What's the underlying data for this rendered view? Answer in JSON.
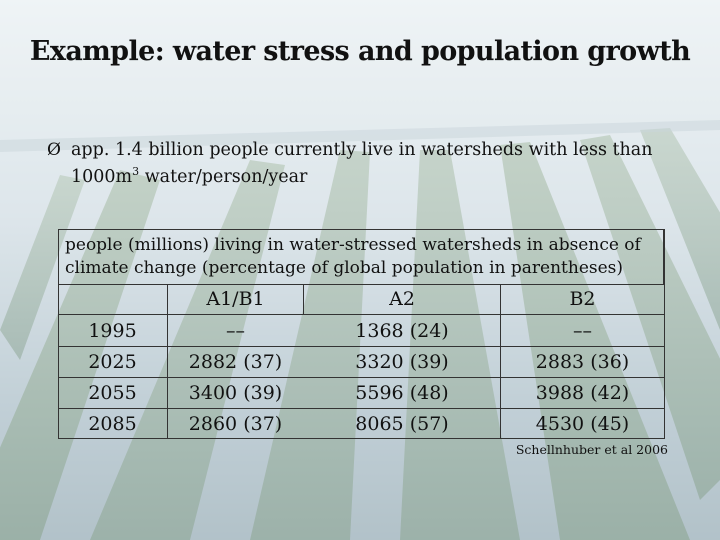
{
  "slide": {
    "title": "Example: water stress and population growth",
    "bullet": {
      "arrow": "Ø",
      "line1": "app. 1.4 billion people currently live in watersheds with less than",
      "line2_pre": "1000m",
      "line2_sup": "3",
      "line2_post": " water/person/year"
    },
    "table": {
      "caption": "people (millions) living in water-stressed watersheds in absence of climate change (percentage of global population in parentheses)",
      "columns": [
        "",
        "A1/B1",
        "A2",
        "B2"
      ],
      "rows": [
        {
          "year": "1995",
          "a1b1": "––",
          "a2": "1368 (24)",
          "b2": "––"
        },
        {
          "year": "2025",
          "a1b1": "2882 (37)",
          "a2": "3320 (39)",
          "b2": "2883 (36)"
        },
        {
          "year": "2055",
          "a1b1": "3400 (39)",
          "a2": "5596 (48)",
          "b2": "3988 (42)"
        },
        {
          "year": "2085",
          "a1b1": "2860 (37)",
          "a2": "8065 (57)",
          "b2": "4530 (45)"
        }
      ]
    },
    "credit": "Schellnhuber et al 2006"
  }
}
